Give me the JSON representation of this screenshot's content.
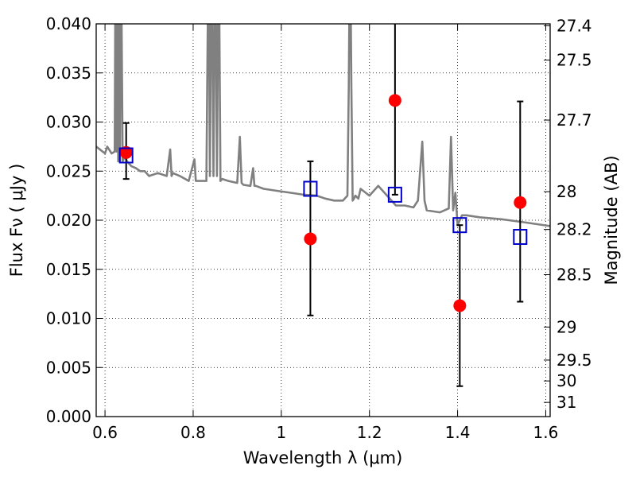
{
  "chart_data": {
    "type": "scatter",
    "title": "",
    "xlabel": "Wavelength  λ (μm)",
    "ylabel": "Flux  Fν  ( μJy )",
    "ylabel_right": "Magnitude (AB)",
    "xlim": [
      0.58,
      1.61
    ],
    "ylim": [
      0.0,
      0.04
    ],
    "grid": true,
    "x_ticks": [
      0.6,
      0.8,
      1.0,
      1.2,
      1.4,
      1.6
    ],
    "x_tick_labels": [
      "0.6",
      "0.8",
      "1",
      "1.2",
      "1.4",
      "1.6"
    ],
    "y_ticks": [
      0.0,
      0.005,
      0.01,
      0.015,
      0.02,
      0.025,
      0.03,
      0.035,
      0.04
    ],
    "y_tick_labels": [
      "0.000",
      "0.005",
      "0.010",
      "0.015",
      "0.020",
      "0.025",
      "0.030",
      "0.035",
      "0.040"
    ],
    "right_ticks": [
      {
        "mag": 27.4,
        "label": "27.4"
      },
      {
        "mag": 27.5,
        "label": "27.5"
      },
      {
        "mag": 27.7,
        "label": "27.7"
      },
      {
        "mag": 28.0,
        "label": "28"
      },
      {
        "mag": 28.2,
        "label": "28.2"
      },
      {
        "mag": 28.5,
        "label": "28.5"
      },
      {
        "mag": 29.0,
        "label": "29"
      },
      {
        "mag": 29.5,
        "label": "29.5"
      },
      {
        "mag": 30.0,
        "label": "30"
      },
      {
        "mag": 31.0,
        "label": "31"
      }
    ],
    "colors": {
      "model": "#808080",
      "observed": "#ff0000",
      "model_photometry": "#0000cc",
      "errorbar": "#000000"
    },
    "series": [
      {
        "name": "model_spectrum",
        "kind": "line",
        "x": [
          0.58,
          0.6,
          0.605,
          0.615,
          0.622,
          0.624,
          0.626,
          0.628,
          0.63,
          0.632,
          0.634,
          0.636,
          0.64,
          0.645,
          0.65,
          0.66,
          0.67,
          0.68,
          0.69,
          0.7,
          0.72,
          0.74,
          0.748,
          0.751,
          0.754,
          0.77,
          0.79,
          0.803,
          0.806,
          0.809,
          0.82,
          0.83,
          0.835,
          0.838,
          0.842,
          0.846,
          0.85,
          0.854,
          0.858,
          0.862,
          0.866,
          0.88,
          0.9,
          0.906,
          0.91,
          0.914,
          0.93,
          0.936,
          0.939,
          0.942,
          0.96,
          0.99,
          1.02,
          1.05,
          1.08,
          1.1,
          1.12,
          1.14,
          1.15,
          1.153,
          1.156,
          1.159,
          1.162,
          1.165,
          1.168,
          1.175,
          1.18,
          1.2,
          1.22,
          1.24,
          1.26,
          1.28,
          1.3,
          1.31,
          1.32,
          1.325,
          1.33,
          1.36,
          1.38,
          1.385,
          1.39,
          1.395,
          1.4,
          1.41,
          1.42,
          1.45,
          1.5,
          1.55,
          1.61
        ],
        "y": [
          0.0275,
          0.0268,
          0.0275,
          0.0268,
          0.027,
          0.05,
          0.027,
          0.05,
          0.026,
          0.05,
          0.026,
          0.05,
          0.026,
          0.0265,
          0.026,
          0.0255,
          0.0253,
          0.025,
          0.025,
          0.0245,
          0.0248,
          0.0245,
          0.0272,
          0.0245,
          0.0248,
          0.0245,
          0.024,
          0.0262,
          0.024,
          0.024,
          0.024,
          0.024,
          0.05,
          0.0245,
          0.05,
          0.0245,
          0.05,
          0.0245,
          0.05,
          0.024,
          0.0242,
          0.024,
          0.0238,
          0.0285,
          0.0238,
          0.0236,
          0.0235,
          0.0253,
          0.0235,
          0.0235,
          0.0232,
          0.023,
          0.0228,
          0.0226,
          0.0225,
          0.0222,
          0.022,
          0.022,
          0.0225,
          0.0335,
          0.05,
          0.0335,
          0.022,
          0.0222,
          0.0225,
          0.0222,
          0.0232,
          0.0225,
          0.0235,
          0.0225,
          0.0215,
          0.0215,
          0.0213,
          0.022,
          0.028,
          0.022,
          0.021,
          0.0208,
          0.0212,
          0.0285,
          0.021,
          0.0228,
          0.0195,
          0.0205,
          0.0205,
          0.0203,
          0.0201,
          0.0198,
          0.0194
        ]
      },
      {
        "name": "model_photometry",
        "kind": "open-square",
        "x": [
          0.648,
          1.066,
          1.258,
          1.405,
          1.542
        ],
        "y": [
          0.0266,
          0.0232,
          0.0226,
          0.0195,
          0.0183
        ]
      },
      {
        "name": "observed_photometry",
        "kind": "filled-circle-with-errorbars",
        "x": [
          0.648,
          1.066,
          1.258,
          1.405,
          1.542
        ],
        "y": [
          0.0269,
          0.0181,
          0.0322,
          0.0113,
          0.0218
        ],
        "yerr_low": [
          0.0027,
          0.0078,
          0.0096,
          0.0082,
          0.0101
        ],
        "yerr_high": [
          0.003,
          0.0079,
          0.0128,
          0.0082,
          0.0103
        ]
      }
    ]
  }
}
